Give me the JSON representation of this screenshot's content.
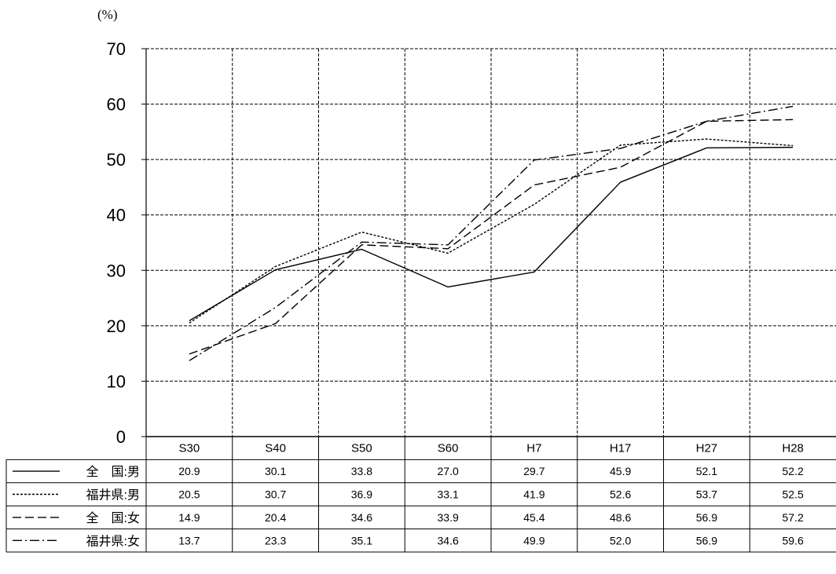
{
  "chart_data": {
    "type": "line",
    "unit_label": "(%)",
    "ylim": [
      0,
      70
    ],
    "yticks": [
      0,
      10,
      20,
      30,
      40,
      50,
      60,
      70
    ],
    "categories": [
      "S30",
      "S40",
      "S50",
      "S60",
      "H7",
      "H17",
      "H27",
      "H28"
    ],
    "grid": true,
    "series": [
      {
        "name": "全　国:男",
        "style": "solid",
        "color": "#000000",
        "values": [
          20.9,
          30.1,
          33.8,
          27.0,
          29.7,
          45.9,
          52.1,
          52.2
        ],
        "labels": [
          "20.9",
          "30.1",
          "33.8",
          "27.0",
          "29.7",
          "45.9",
          "52.1",
          "52.2"
        ]
      },
      {
        "name": "福井県:男",
        "style": "dotted",
        "color": "#000000",
        "values": [
          20.5,
          30.7,
          36.9,
          33.1,
          41.9,
          52.6,
          53.7,
          52.5
        ],
        "labels": [
          "20.5",
          "30.7",
          "36.9",
          "33.1",
          "41.9",
          "52.6",
          "53.7",
          "52.5"
        ]
      },
      {
        "name": "全　国:女",
        "style": "dashed",
        "color": "#000000",
        "values": [
          14.9,
          20.4,
          34.6,
          33.9,
          45.4,
          48.6,
          56.9,
          57.2
        ],
        "labels": [
          "14.9",
          "20.4",
          "34.6",
          "33.9",
          "45.4",
          "48.6",
          "56.9",
          "57.2"
        ]
      },
      {
        "name": "福井県:女",
        "style": "dashdot",
        "color": "#000000",
        "values": [
          13.7,
          23.3,
          35.1,
          34.6,
          49.9,
          52.0,
          56.9,
          59.6
        ],
        "labels": [
          "13.7",
          "23.3",
          "35.1",
          "34.6",
          "49.9",
          "52.0",
          "56.9",
          "59.6"
        ]
      }
    ]
  }
}
